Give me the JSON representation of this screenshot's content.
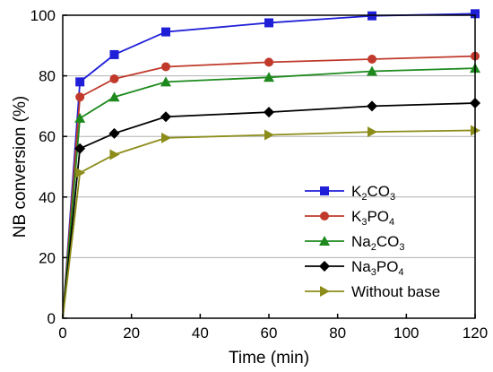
{
  "chart_data": {
    "type": "line",
    "title": "",
    "xlabel": "Time (min)",
    "ylabel": "NB conversion (%)",
    "xlim": [
      0,
      120
    ],
    "ylim": [
      0,
      100
    ],
    "x_ticks": [
      0,
      20,
      40,
      60,
      80,
      100,
      120
    ],
    "y_ticks": [
      0,
      20,
      40,
      60,
      80,
      100
    ],
    "x_tick_labels": [
      "0",
      "20",
      "40",
      "60",
      "80",
      "100",
      "120"
    ],
    "y_tick_labels": [
      "0",
      "20",
      "40",
      "60",
      "80",
      "100"
    ],
    "grid": "horizontal",
    "legend_position": "bottom-right",
    "series": [
      {
        "name": "K2CO3",
        "label_parts": [
          [
            "K",
            ""
          ],
          [
            "2",
            "sub"
          ],
          [
            "CO",
            ""
          ],
          [
            "3",
            "sub"
          ]
        ],
        "color": "#1f1fd8",
        "marker": "square",
        "x": [
          0,
          5,
          15,
          30,
          60,
          90,
          120
        ],
        "y": [
          0,
          78,
          87,
          94.5,
          97.5,
          99.8,
          100.5
        ]
      },
      {
        "name": "K3PO4",
        "label_parts": [
          [
            "K",
            ""
          ],
          [
            "3",
            "sub"
          ],
          [
            "PO",
            ""
          ],
          [
            "4",
            "sub"
          ]
        ],
        "color": "#c0392b",
        "marker": "circle",
        "x": [
          0,
          5,
          15,
          30,
          60,
          90,
          120
        ],
        "y": [
          0,
          73,
          79,
          83,
          84.5,
          85.5,
          86.5
        ]
      },
      {
        "name": "Na2CO3",
        "label_parts": [
          [
            "Na",
            ""
          ],
          [
            "2",
            "sub"
          ],
          [
            "CO",
            ""
          ],
          [
            "3",
            "sub"
          ]
        ],
        "color": "#1e8a1e",
        "marker": "triangle-up",
        "x": [
          0,
          5,
          15,
          30,
          60,
          90,
          120
        ],
        "y": [
          0,
          66,
          73,
          78,
          79.5,
          81.5,
          82.5
        ]
      },
      {
        "name": "Na3PO4",
        "label_parts": [
          [
            "Na",
            ""
          ],
          [
            "3",
            "sub"
          ],
          [
            "PO",
            ""
          ],
          [
            "4",
            "sub"
          ]
        ],
        "color": "#000000",
        "marker": "diamond",
        "x": [
          0,
          5,
          15,
          30,
          60,
          90,
          120
        ],
        "y": [
          0,
          56,
          61,
          66.5,
          68,
          70,
          71
        ]
      },
      {
        "name": "Without base",
        "label_parts": [
          [
            "Without base",
            ""
          ]
        ],
        "color": "#8c8c1a",
        "marker": "triangle-right",
        "x": [
          0,
          5,
          15,
          30,
          60,
          90,
          120
        ],
        "y": [
          0,
          48,
          54,
          59.5,
          60.5,
          61.5,
          62
        ]
      }
    ]
  }
}
